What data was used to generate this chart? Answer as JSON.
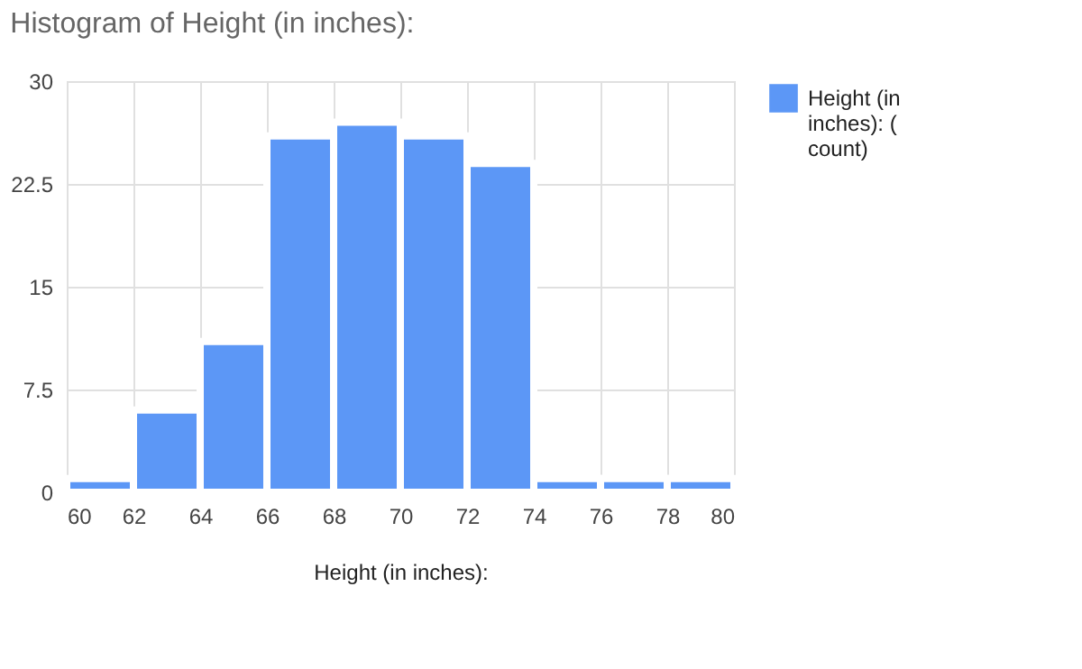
{
  "chart_data": {
    "type": "histogram",
    "title": "Histogram of Height (in inches):",
    "xlabel": "Height (in inches):",
    "bins": [
      60,
      62,
      64,
      66,
      68,
      70,
      72,
      74,
      76,
      78,
      80
    ],
    "series": [
      {
        "name": "Height (in inches): ( count)",
        "color": "#5c97f6",
        "values": [
          1,
          6,
          11,
          26,
          27,
          26,
          24,
          1,
          1,
          1
        ]
      }
    ],
    "xlim": [
      60,
      80
    ],
    "xticks": [
      60,
      62,
      64,
      66,
      68,
      70,
      72,
      74,
      76,
      78,
      80
    ],
    "ylim": [
      0,
      30
    ],
    "yticks": [
      0,
      7.5,
      15,
      22.5,
      30
    ],
    "grid": true,
    "legend": "top right"
  }
}
